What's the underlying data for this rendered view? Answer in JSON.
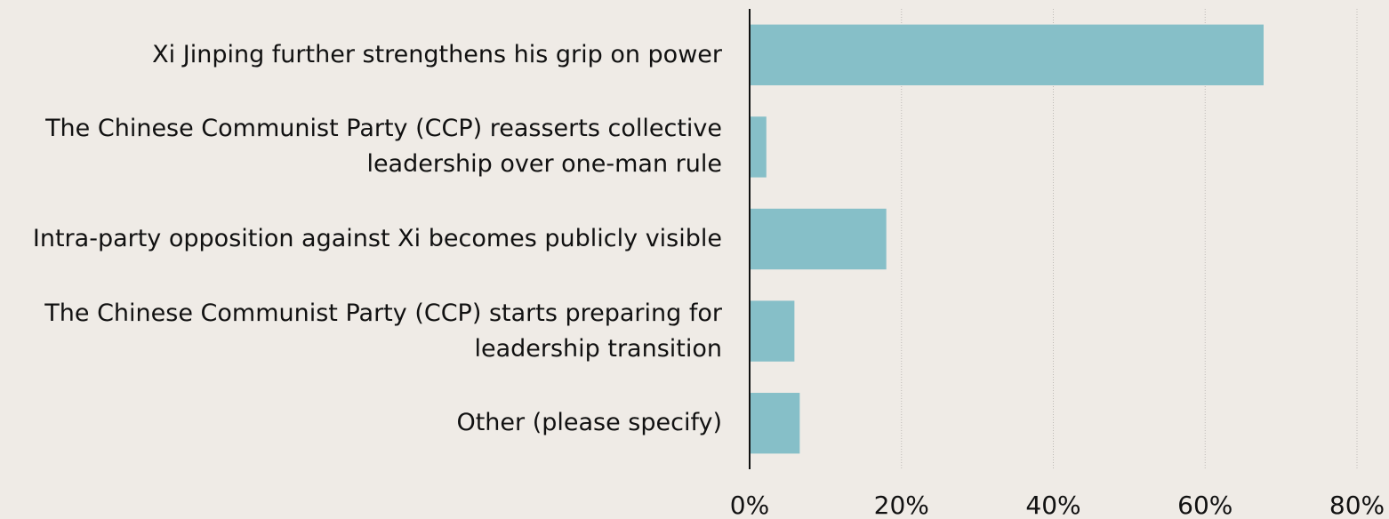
{
  "chart_data": {
    "type": "bar",
    "orientation": "horizontal",
    "categories": [
      "Xi Jinping further strengthens his grip on power",
      "The Chinese Communist Party (CCP) reasserts collective leadership over one-man rule",
      "Intra-party opposition against Xi becomes publicly visible",
      "The Chinese Communist Party (CCP) starts preparing for leadership transition",
      "Other (please specify)"
    ],
    "values": [
      67.7,
      2.2,
      18.0,
      5.9,
      6.6
    ],
    "color": "#86bfc8",
    "xlim": [
      0,
      80
    ],
    "xticks": [
      {
        "value": 0,
        "label": "0%"
      },
      {
        "value": 20,
        "label": "20%"
      },
      {
        "value": 40,
        "label": "40%"
      },
      {
        "value": 60,
        "label": "60%"
      },
      {
        "value": 80,
        "label": "80%"
      }
    ],
    "grid": true
  }
}
